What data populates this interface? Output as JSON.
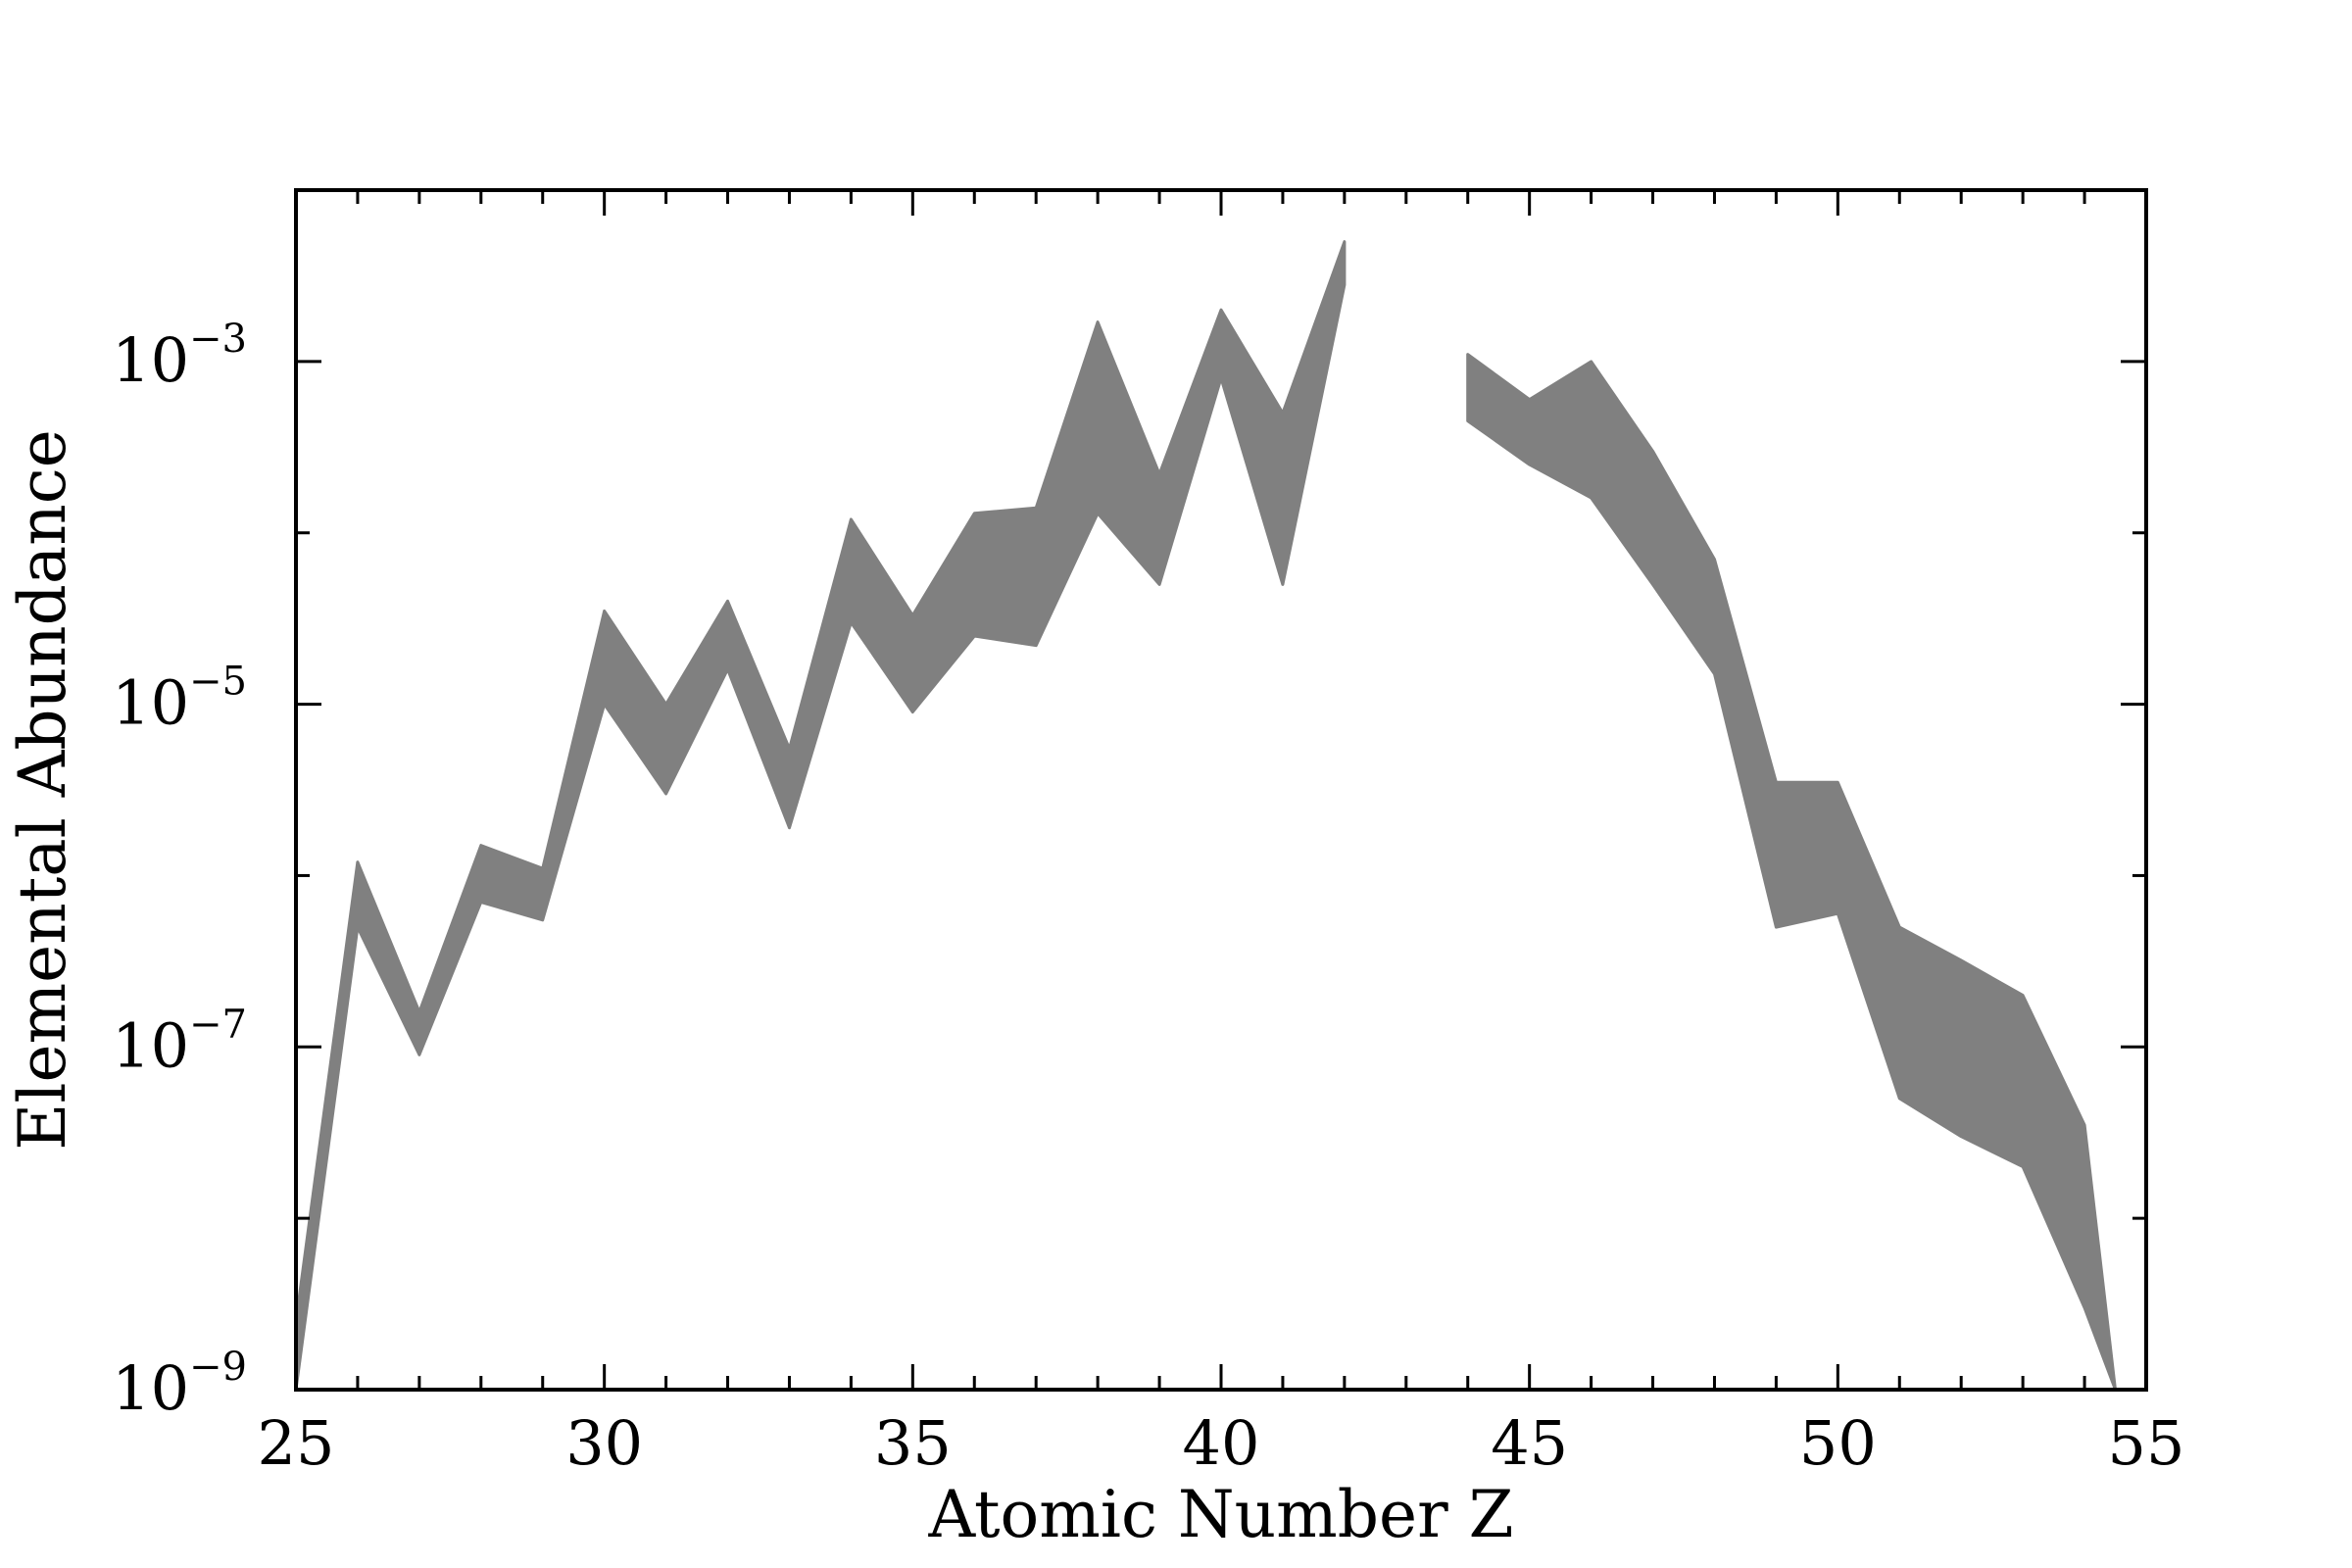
{
  "chart_data": {
    "type": "area",
    "title": "",
    "xlabel": "Atomic Number Z",
    "ylabel": "Elemental Abundance",
    "xlim": [
      25,
      55
    ],
    "ylim": [
      1e-09,
      0.01
    ],
    "yscale": "log",
    "grid": false,
    "legend": "none",
    "xticks": [
      "25",
      "30",
      "35",
      "40",
      "45",
      "50",
      "55"
    ],
    "yticks": [
      {
        "base": "10",
        "exp": "−3",
        "value": 0.001
      },
      {
        "base": "10",
        "exp": "−5",
        "value": 1e-05
      },
      {
        "base": "10",
        "exp": "−7",
        "value": 1e-07
      },
      {
        "base": "10",
        "exp": "−9",
        "value": 1e-09
      }
    ],
    "fill_color": "#808080",
    "series": [
      {
        "segments": [
          {
            "x": [
              25,
              26,
              27,
              28,
              29,
              30,
              31,
              32,
              33,
              34,
              35,
              36,
              37,
              38,
              39,
              40,
              41,
              42
            ],
            "lower": [
              1e-09,
              5e-07,
              9e-08,
              7e-07,
              5.5e-07,
              1e-05,
              3e-06,
              1.6e-05,
              1.9e-06,
              3e-05,
              9e-06,
              2.5e-05,
              2.2e-05,
              0.00013,
              5e-05,
              0.0008,
              5e-05,
              0.0028
            ],
            "upper": [
              2.5e-09,
              1.2e-06,
              1.6e-07,
              1.5e-06,
              1.1e-06,
              3.5e-05,
              1e-05,
              4e-05,
              5.5e-06,
              0.00012,
              3.3e-05,
              0.00013,
              0.00014,
              0.0017,
              0.00022,
              0.002,
              0.0005,
              0.005
            ]
          },
          {
            "x": [
              44,
              45,
              46,
              47,
              48,
              49,
              50,
              51,
              52,
              53,
              54,
              54.5
            ],
            "lower": [
              0.00045,
              0.00025,
              0.00016,
              5e-05,
              1.5e-05,
              5e-07,
              6e-07,
              5e-08,
              3e-08,
              2e-08,
              3e-09,
              1e-09
            ],
            "upper": [
              0.0011,
              0.0006,
              0.001,
              0.0003,
              7e-05,
              3.5e-06,
              3.5e-06,
              5e-07,
              3.2e-07,
              2e-07,
              3.5e-08,
              1e-09
            ]
          }
        ]
      }
    ]
  }
}
